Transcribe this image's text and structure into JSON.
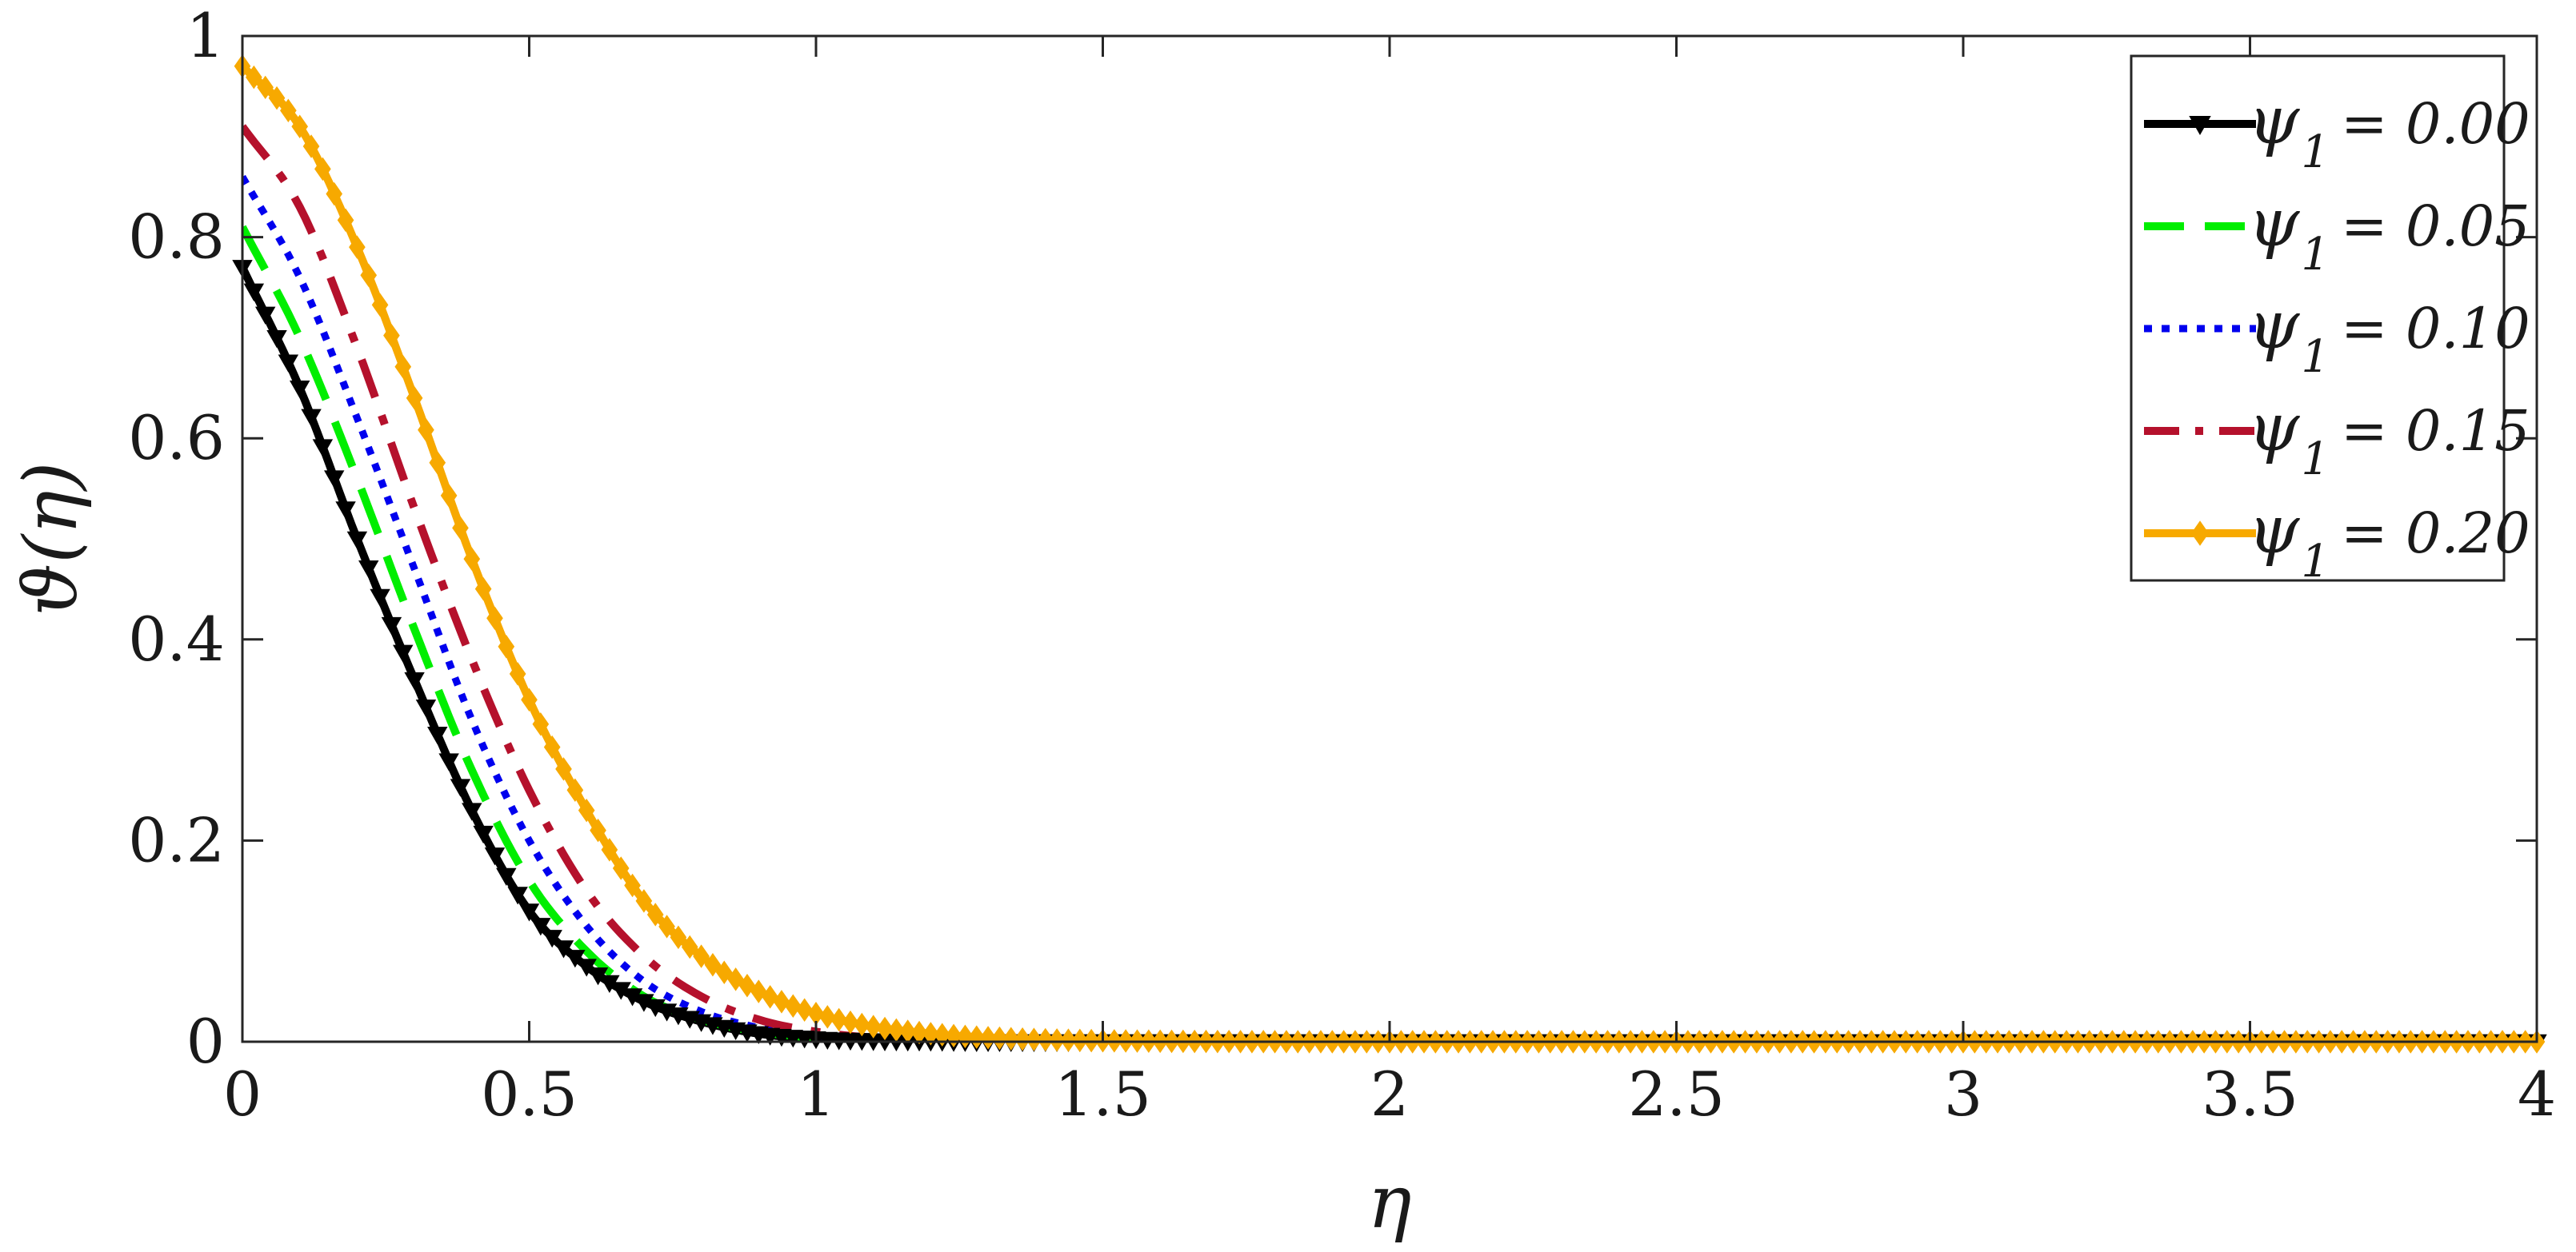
{
  "chart_data": {
    "type": "line",
    "xlabel": "η",
    "ylabel": "ϑ(η)",
    "xlim": [
      0,
      4
    ],
    "ylim": [
      0,
      1
    ],
    "xticks": [
      0,
      0.5,
      1,
      1.5,
      2,
      2.5,
      3,
      3.5,
      4
    ],
    "xtick_labels": [
      "0",
      "0.5",
      "1",
      "1.5",
      "2",
      "2.5",
      "3",
      "3.5",
      "4"
    ],
    "yticks": [
      0,
      0.2,
      0.4,
      0.6,
      0.8,
      1
    ],
    "ytick_labels": [
      "0",
      "0.2",
      "0.4",
      "0.6",
      "0.8",
      "1"
    ],
    "grid": false,
    "legend_position": "top-right",
    "legend_symbol": "ψ",
    "legend_subscript": "1",
    "series": [
      {
        "name": "ψ1 = 0.00",
        "legend_value": "= 0.00",
        "color": "#000000",
        "style": "solid",
        "marker": "triangle-down",
        "x": [
          0,
          0.1,
          0.2,
          0.3,
          0.4,
          0.5,
          0.6,
          0.7,
          0.8,
          0.9,
          1.0,
          1.1,
          1.2,
          1.3,
          1.5,
          2,
          2.5,
          3,
          3.5,
          4
        ],
        "y": [
          0.77,
          0.65,
          0.5,
          0.36,
          0.23,
          0.13,
          0.075,
          0.04,
          0.02,
          0.008,
          0.003,
          0.001,
          0.0005,
          0,
          0,
          0,
          0,
          0,
          0,
          0
        ]
      },
      {
        "name": "ψ1 = 0.05",
        "legend_value": "= 0.05",
        "color": "#00ee00",
        "style": "dashed",
        "marker": "none",
        "x": [
          0,
          0.1,
          0.2,
          0.3,
          0.4,
          0.5,
          0.6,
          0.7,
          0.8,
          0.9,
          1.0,
          1.1,
          1.2,
          1.3,
          1.5,
          2,
          2.5,
          3,
          3.5,
          4
        ],
        "y": [
          0.81,
          0.7,
          0.56,
          0.41,
          0.27,
          0.16,
          0.09,
          0.045,
          0.022,
          0.01,
          0.004,
          0.0015,
          0.0005,
          0,
          0,
          0,
          0,
          0,
          0,
          0
        ]
      },
      {
        "name": "ψ1 = 0.10",
        "legend_value": "= 0.10",
        "color": "#0000ee",
        "style": "dotted",
        "marker": "none",
        "x": [
          0,
          0.1,
          0.2,
          0.3,
          0.4,
          0.5,
          0.6,
          0.7,
          0.8,
          0.9,
          1.0,
          1.1,
          1.2,
          1.3,
          1.5,
          2,
          2.5,
          3,
          3.5,
          4
        ],
        "y": [
          0.86,
          0.76,
          0.62,
          0.47,
          0.32,
          0.2,
          0.115,
          0.06,
          0.03,
          0.014,
          0.006,
          0.0025,
          0.001,
          0,
          0,
          0,
          0,
          0,
          0,
          0
        ]
      },
      {
        "name": "ψ1 = 0.15",
        "legend_value": "= 0.15",
        "color": "#b5112c",
        "style": "dashdot",
        "marker": "none",
        "x": [
          0,
          0.1,
          0.2,
          0.3,
          0.4,
          0.5,
          0.6,
          0.7,
          0.8,
          0.9,
          1.0,
          1.1,
          1.2,
          1.3,
          1.5,
          2,
          2.5,
          3,
          3.5,
          4
        ],
        "y": [
          0.91,
          0.83,
          0.69,
          0.53,
          0.38,
          0.25,
          0.15,
          0.085,
          0.045,
          0.022,
          0.01,
          0.004,
          0.0018,
          0.0008,
          0,
          0,
          0,
          0,
          0,
          0
        ]
      },
      {
        "name": "ψ1 = 0.20",
        "legend_value": "= 0.20",
        "color": "#f7a900",
        "style": "solid",
        "marker": "diamond",
        "x": [
          0,
          0.1,
          0.2,
          0.3,
          0.4,
          0.5,
          0.6,
          0.7,
          0.8,
          0.9,
          1.0,
          1.1,
          1.2,
          1.3,
          1.5,
          2,
          2.5,
          3,
          3.5,
          4
        ],
        "y": [
          0.97,
          0.91,
          0.79,
          0.64,
          0.48,
          0.34,
          0.23,
          0.14,
          0.085,
          0.05,
          0.028,
          0.015,
          0.008,
          0.004,
          0.001,
          0,
          0,
          0,
          0,
          0
        ]
      }
    ]
  }
}
